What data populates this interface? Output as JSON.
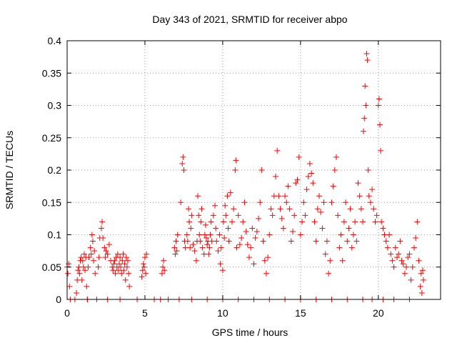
{
  "chart_data": {
    "type": "scatter",
    "title": "Day 343 of 2021, SRMTID for receiver abpo",
    "xlabel": "GPS time / hours",
    "ylabel": "SRMTID / TECUs",
    "xlim": [
      0,
      24
    ],
    "ylim": [
      0,
      0.4
    ],
    "xticks": [
      0,
      5,
      10,
      15,
      20
    ],
    "xtick_labels": [
      "0",
      "5",
      "10",
      "15",
      "20"
    ],
    "yticks": [
      0,
      0.05,
      0.1,
      0.15,
      0.2,
      0.25,
      0.3,
      0.35,
      0.4
    ],
    "ytick_labels": [
      "0",
      "0.05",
      "0.1",
      "0.15",
      "0.2",
      "0.25",
      "0.3",
      "0.35",
      "0.4"
    ],
    "grid": true,
    "marker": "+",
    "color": "#ff0000",
    "series": [
      {
        "name": "SRMTID",
        "points": [
          [
            0.0,
            0.05
          ],
          [
            0.05,
            0.04
          ],
          [
            0.1,
            0.055
          ],
          [
            0.15,
            0.02
          ],
          [
            0.2,
            0.0
          ],
          [
            0.5,
            0.0
          ],
          [
            0.6,
            0.01
          ],
          [
            0.65,
            0.03
          ],
          [
            0.7,
            0.045
          ],
          [
            0.75,
            0.05
          ],
          [
            0.8,
            0.04
          ],
          [
            0.85,
            0.06
          ],
          [
            0.9,
            0.065
          ],
          [
            0.95,
            0.03
          ],
          [
            1.0,
            0.06
          ],
          [
            1.05,
            0.05
          ],
          [
            1.1,
            0.07
          ],
          [
            1.15,
            0.045
          ],
          [
            1.2,
            0.065
          ],
          [
            1.25,
            0.02
          ],
          [
            1.3,
            0.0
          ],
          [
            1.35,
            0.05
          ],
          [
            1.4,
            0.065
          ],
          [
            1.5,
            0.08
          ],
          [
            1.55,
            0.07
          ],
          [
            1.6,
            0.1
          ],
          [
            1.65,
            0.09
          ],
          [
            1.7,
            0.06
          ],
          [
            1.75,
            0.075
          ],
          [
            1.8,
            0.04
          ],
          [
            1.9,
            0.0
          ],
          [
            2.0,
            0.05
          ],
          [
            2.05,
            0.065
          ],
          [
            2.1,
            0.095
          ],
          [
            2.2,
            0.11
          ],
          [
            2.25,
            0.12
          ],
          [
            2.3,
            0.095
          ],
          [
            2.4,
            0.08
          ],
          [
            2.45,
            0.065
          ],
          [
            2.5,
            0.075
          ],
          [
            2.6,
            0.07
          ],
          [
            2.7,
            0.085
          ],
          [
            2.8,
            0.06
          ],
          [
            2.9,
            0.05
          ],
          [
            2.95,
            0.045
          ],
          [
            3.0,
            0.055
          ],
          [
            3.05,
            0.06
          ],
          [
            3.1,
            0.04
          ],
          [
            3.15,
            0.065
          ],
          [
            3.2,
            0.05
          ],
          [
            3.25,
            0.07
          ],
          [
            3.3,
            0.045
          ],
          [
            3.35,
            0.055
          ],
          [
            3.4,
            0.065
          ],
          [
            3.45,
            0.05
          ],
          [
            3.5,
            0.04
          ],
          [
            3.55,
            0.06
          ],
          [
            3.6,
            0.07
          ],
          [
            3.65,
            0.045
          ],
          [
            3.7,
            0.055
          ],
          [
            3.75,
            0.03
          ],
          [
            3.8,
            0.065
          ],
          [
            3.85,
            0.05
          ],
          [
            3.9,
            0.06
          ],
          [
            3.95,
            0.04
          ],
          [
            4.0,
            0.02
          ],
          [
            4.5,
            0.0
          ],
          [
            4.8,
            0.035
          ],
          [
            4.85,
            0.045
          ],
          [
            4.9,
            0.055
          ],
          [
            4.95,
            0.05
          ],
          [
            5.0,
            0.065
          ],
          [
            5.05,
            0.04
          ],
          [
            5.1,
            0.07
          ],
          [
            6.0,
            0.0
          ],
          [
            6.1,
            0.04
          ],
          [
            6.15,
            0.05
          ],
          [
            6.2,
            0.06
          ],
          [
            6.25,
            0.045
          ],
          [
            6.5,
            0.0
          ],
          [
            6.9,
            0.08
          ],
          [
            6.95,
            0.07
          ],
          [
            7.0,
            0.09
          ],
          [
            7.05,
            0.075
          ],
          [
            7.1,
            0.1
          ],
          [
            7.3,
            0.15
          ],
          [
            7.4,
            0.21
          ],
          [
            7.45,
            0.22
          ],
          [
            7.5,
            0.2
          ],
          [
            7.55,
            0.09
          ],
          [
            7.6,
            0.08
          ],
          [
            7.7,
            0.1
          ],
          [
            7.75,
            0.09
          ],
          [
            7.8,
            0.14
          ],
          [
            7.85,
            0.12
          ],
          [
            7.9,
            0.08
          ],
          [
            7.95,
            0.11
          ],
          [
            8.0,
            0.13
          ],
          [
            8.1,
            0.085
          ],
          [
            8.2,
            0.075
          ],
          [
            8.3,
            0.06
          ],
          [
            8.35,
            0.09
          ],
          [
            8.4,
            0.16
          ],
          [
            8.45,
            0.13
          ],
          [
            8.5,
            0.1
          ],
          [
            8.55,
            0.09
          ],
          [
            8.6,
            0.12
          ],
          [
            8.65,
            0.14
          ],
          [
            8.7,
            0.08
          ],
          [
            8.8,
            0.07
          ],
          [
            8.85,
            0.1
          ],
          [
            8.9,
            0.115
          ],
          [
            8.95,
            0.095
          ],
          [
            9.0,
            0.085
          ],
          [
            9.05,
            0.09
          ],
          [
            9.1,
            0.07
          ],
          [
            9.15,
            0.08
          ],
          [
            9.2,
            0.1
          ],
          [
            9.25,
            0.12
          ],
          [
            9.3,
            0.09
          ],
          [
            9.4,
            0.13
          ],
          [
            9.5,
            0.145
          ],
          [
            9.55,
            0.11
          ],
          [
            9.6,
            0.09
          ],
          [
            9.7,
            0.075
          ],
          [
            9.8,
            0.1
          ],
          [
            9.85,
            0.055
          ],
          [
            9.9,
            0.08
          ],
          [
            10.0,
            0.045
          ],
          [
            10.05,
            0.12
          ],
          [
            10.1,
            0.095
          ],
          [
            10.15,
            0.145
          ],
          [
            10.2,
            0.13
          ],
          [
            10.3,
            0.16
          ],
          [
            10.35,
            0.11
          ],
          [
            10.4,
            0.09
          ],
          [
            10.5,
            0.165
          ],
          [
            10.6,
            0.12
          ],
          [
            10.7,
            0.14
          ],
          [
            10.8,
            0.2
          ],
          [
            10.85,
            0.215
          ],
          [
            10.9,
            0.08
          ],
          [
            11.0,
            0.13
          ],
          [
            11.1,
            0.085
          ],
          [
            11.2,
            0.095
          ],
          [
            11.3,
            0.12
          ],
          [
            11.4,
            0.15
          ],
          [
            11.5,
            0.105
          ],
          [
            11.6,
            0.085
          ],
          [
            11.7,
            0.065
          ],
          [
            11.8,
            0.08
          ],
          [
            11.9,
            0.11
          ],
          [
            12.0,
            0.055
          ],
          [
            12.1,
            0.095
          ],
          [
            12.2,
            0.105
          ],
          [
            12.3,
            0.125
          ],
          [
            12.4,
            0.15
          ],
          [
            12.5,
            0.2
          ],
          [
            12.6,
            0.09
          ],
          [
            12.7,
            0.06
          ],
          [
            12.8,
            0.04
          ],
          [
            12.9,
            0.065
          ],
          [
            13.0,
            0.1
          ],
          [
            13.1,
            0.14
          ],
          [
            13.2,
            0.13
          ],
          [
            13.3,
            0.16
          ],
          [
            13.4,
            0.19
          ],
          [
            13.5,
            0.23
          ],
          [
            13.6,
            0.16
          ],
          [
            13.7,
            0.14
          ],
          [
            13.8,
            0.125
          ],
          [
            13.9,
            0.11
          ],
          [
            14.0,
            0.16
          ],
          [
            14.1,
            0.15
          ],
          [
            14.2,
            0.175
          ],
          [
            14.3,
            0.14
          ],
          [
            14.4,
            0.09
          ],
          [
            14.5,
            0.105
          ],
          [
            14.6,
            0.13
          ],
          [
            14.7,
            0.18
          ],
          [
            14.8,
            0.185
          ],
          [
            14.9,
            0.22
          ],
          [
            15.0,
            0.1
          ],
          [
            15.1,
            0.12
          ],
          [
            15.2,
            0.15
          ],
          [
            15.3,
            0.13
          ],
          [
            15.4,
            0.17
          ],
          [
            15.5,
            0.19
          ],
          [
            15.6,
            0.21
          ],
          [
            15.7,
            0.195
          ],
          [
            15.8,
            0.18
          ],
          [
            15.9,
            0.12
          ],
          [
            16.0,
            0.09
          ],
          [
            16.1,
            0.14
          ],
          [
            16.2,
            0.16
          ],
          [
            16.3,
            0.135
          ],
          [
            16.4,
            0.11
          ],
          [
            16.5,
            0.15
          ],
          [
            16.6,
            0.07
          ],
          [
            16.7,
            0.09
          ],
          [
            16.8,
            0.04
          ],
          [
            16.9,
            0.06
          ],
          [
            17.0,
            0.15
          ],
          [
            17.1,
            0.175
          ],
          [
            17.2,
            0.2
          ],
          [
            17.3,
            0.22
          ],
          [
            17.4,
            0.13
          ],
          [
            17.5,
            0.08
          ],
          [
            17.6,
            0.1
          ],
          [
            17.7,
            0.06
          ],
          [
            17.8,
            0.12
          ],
          [
            17.9,
            0.15
          ],
          [
            18.0,
            0.09
          ],
          [
            18.1,
            0.11
          ],
          [
            18.2,
            0.14
          ],
          [
            18.3,
            0.08
          ],
          [
            18.4,
            0.1
          ],
          [
            18.5,
            0.12
          ],
          [
            18.6,
            0.09
          ],
          [
            18.7,
            0.18
          ],
          [
            18.8,
            0.16
          ],
          [
            18.9,
            0.14
          ],
          [
            19.0,
            0.12
          ],
          [
            19.05,
            0.26
          ],
          [
            19.1,
            0.28
          ],
          [
            19.15,
            0.33
          ],
          [
            19.2,
            0.3
          ],
          [
            19.25,
            0.38
          ],
          [
            19.3,
            0.37
          ],
          [
            19.35,
            0.2
          ],
          [
            19.4,
            0.16
          ],
          [
            19.5,
            0.15
          ],
          [
            19.6,
            0.17
          ],
          [
            19.7,
            0.14
          ],
          [
            19.8,
            0.12
          ],
          [
            19.9,
            0.13
          ],
          [
            20.0,
            0.3
          ],
          [
            20.05,
            0.31
          ],
          [
            20.1,
            0.27
          ],
          [
            20.15,
            0.23
          ],
          [
            20.2,
            0.12
          ],
          [
            20.3,
            0.11
          ],
          [
            20.4,
            0.1
          ],
          [
            20.5,
            0.09
          ],
          [
            20.6,
            0.08
          ],
          [
            20.7,
            0.1
          ],
          [
            20.8,
            0.07
          ],
          [
            20.9,
            0.06
          ],
          [
            21.0,
            0.05
          ],
          [
            21.1,
            0.08
          ],
          [
            21.2,
            0.065
          ],
          [
            21.3,
            0.07
          ],
          [
            21.4,
            0.09
          ],
          [
            21.5,
            0.06
          ],
          [
            21.6,
            0.055
          ],
          [
            21.7,
            0.04
          ],
          [
            21.8,
            0.05
          ],
          [
            21.9,
            0.065
          ],
          [
            22.0,
            0.07
          ],
          [
            22.1,
            0.03
          ],
          [
            22.2,
            0.05
          ],
          [
            22.3,
            0.08
          ],
          [
            22.4,
            0.095
          ],
          [
            22.5,
            0.12
          ],
          [
            22.6,
            0.06
          ],
          [
            22.7,
            0.02
          ],
          [
            22.75,
            0.04
          ],
          [
            22.8,
            0.01
          ],
          [
            22.85,
            0.045
          ],
          [
            22.9,
            0.03
          ],
          [
            1.3,
            0.0
          ],
          [
            2.6,
            0.0
          ],
          [
            3.4,
            0.0
          ],
          [
            5.6,
            0.0
          ],
          [
            7.2,
            0.0
          ],
          [
            8.0,
            0.0
          ],
          [
            9.0,
            0.0
          ],
          [
            10.0,
            0.0
          ],
          [
            11.0,
            0.0
          ],
          [
            12.0,
            0.0
          ],
          [
            13.0,
            0.0
          ],
          [
            14.0,
            0.0
          ],
          [
            15.0,
            0.0
          ],
          [
            16.0,
            0.0
          ],
          [
            17.0,
            0.0
          ],
          [
            18.0,
            0.0
          ],
          [
            19.0,
            0.0
          ],
          [
            19.6,
            0.0
          ],
          [
            20.3,
            0.0
          ],
          [
            21.0,
            0.0
          ],
          [
            22.0,
            0.0
          ]
        ]
      }
    ]
  }
}
